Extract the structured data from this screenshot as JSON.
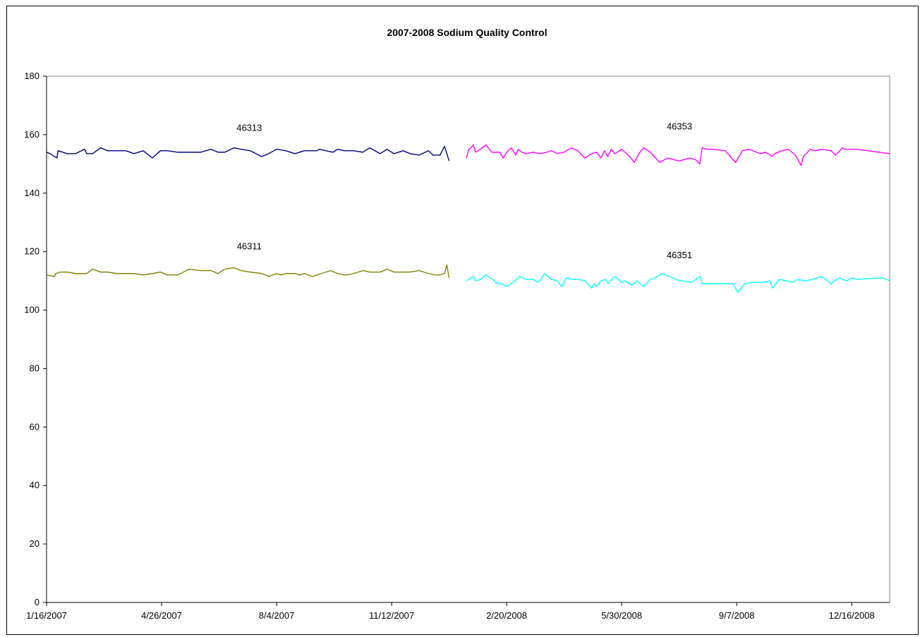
{
  "chart_data": {
    "type": "line",
    "title": "2007-2008 Sodium Quality Control",
    "xlabel": "",
    "ylabel": "",
    "ylim": [
      0,
      180
    ],
    "yticks": [
      0,
      20,
      40,
      60,
      80,
      100,
      120,
      140,
      160,
      180
    ],
    "x_axis": "date",
    "xlim": [
      "2007-01-16",
      "2009-01-18"
    ],
    "xtick_labels": [
      "1/16/2007",
      "4/26/2007",
      "8/4/2007",
      "11/12/2007",
      "2/20/2008",
      "5/30/2008",
      "9/7/2008",
      "12/16/2008"
    ],
    "xtick_dates": [
      "2007-01-16",
      "2007-04-26",
      "2007-08-04",
      "2007-11-12",
      "2008-02-20",
      "2008-05-30",
      "2008-09-07",
      "2008-12-16"
    ],
    "grid": false,
    "legend": "none",
    "series": [
      {
        "name": "46313",
        "color": "#000080",
        "x": [
          "2007-01-16",
          "2007-01-19",
          "2007-01-25",
          "2007-01-26",
          "2007-02-03",
          "2007-02-10",
          "2007-02-18",
          "2007-02-20",
          "2007-02-25",
          "2007-03-04",
          "2007-03-10",
          "2007-03-18",
          "2007-03-26",
          "2007-04-02",
          "2007-04-10",
          "2007-04-18",
          "2007-04-25",
          "2007-05-01",
          "2007-05-10",
          "2007-05-20",
          "2007-05-30",
          "2007-06-08",
          "2007-06-14",
          "2007-06-20",
          "2007-06-28",
          "2007-07-04",
          "2007-07-12",
          "2007-07-22",
          "2007-07-28",
          "2007-08-04",
          "2007-08-12",
          "2007-08-20",
          "2007-08-28",
          "2007-09-04",
          "2007-09-08",
          "2007-09-10",
          "2007-09-16",
          "2007-09-22",
          "2007-09-26",
          "2007-10-02",
          "2007-10-10",
          "2007-10-18",
          "2007-10-24",
          "2007-11-02",
          "2007-11-08",
          "2007-11-14",
          "2007-11-22",
          "2007-11-28",
          "2007-12-06",
          "2007-12-14",
          "2007-12-18",
          "2007-12-24",
          "2007-12-28",
          "2007-12-30",
          "2008-01-01"
        ],
        "values": [
          154,
          153.5,
          152,
          154.5,
          153.5,
          153.5,
          155,
          153.5,
          153.5,
          155.5,
          154.5,
          154.5,
          154.5,
          153.5,
          154.5,
          152,
          154.5,
          154.5,
          154,
          154,
          154,
          155,
          154,
          154,
          155.5,
          155,
          154.5,
          152.5,
          153.5,
          155,
          154.5,
          153.5,
          154.5,
          154.5,
          154.5,
          155,
          154.5,
          154,
          155,
          154.5,
          154.5,
          154,
          155.5,
          153.5,
          155,
          153.5,
          154.5,
          153.5,
          153,
          154.5,
          153,
          153,
          156,
          153.5,
          151
        ]
      },
      {
        "name": "46311",
        "color": "#808000",
        "x": [
          "2007-01-16",
          "2007-01-23",
          "2007-01-24",
          "2007-01-28",
          "2007-02-03",
          "2007-02-10",
          "2007-02-20",
          "2007-02-25",
          "2007-03-04",
          "2007-03-10",
          "2007-03-18",
          "2007-03-26",
          "2007-04-02",
          "2007-04-10",
          "2007-04-18",
          "2007-04-25",
          "2007-05-01",
          "2007-05-05",
          "2007-05-10",
          "2007-05-20",
          "2007-05-30",
          "2007-06-08",
          "2007-06-14",
          "2007-06-20",
          "2007-06-28",
          "2007-07-04",
          "2007-07-12",
          "2007-07-22",
          "2007-07-28",
          "2007-08-04",
          "2007-08-08",
          "2007-08-12",
          "2007-08-20",
          "2007-08-24",
          "2007-08-28",
          "2007-09-04",
          "2007-09-12",
          "2007-09-20",
          "2007-09-26",
          "2007-10-02",
          "2007-10-04",
          "2007-10-10",
          "2007-10-18",
          "2007-10-24",
          "2007-10-28",
          "2007-11-02",
          "2007-11-08",
          "2007-11-14",
          "2007-11-22",
          "2007-11-28",
          "2007-12-06",
          "2007-12-14",
          "2007-12-20",
          "2007-12-24",
          "2007-12-28",
          "2007-12-30",
          "2008-01-01"
        ],
        "values": [
          112,
          111.5,
          112.5,
          113,
          113,
          112.5,
          112.5,
          114,
          113,
          113,
          112.5,
          112.5,
          112.5,
          112,
          112.5,
          113,
          112,
          112,
          112,
          114,
          113.5,
          113.5,
          112.5,
          114,
          114.5,
          113.5,
          113,
          112.5,
          111.5,
          112.5,
          112,
          112.5,
          112.5,
          112,
          112.5,
          111.5,
          112.5,
          113.5,
          112.5,
          112,
          112,
          112.5,
          113.5,
          113,
          113,
          113,
          114,
          113,
          113,
          113,
          113.5,
          112.5,
          112,
          112,
          112.5,
          115.5,
          111
        ]
      },
      {
        "name": "46353",
        "color": "#FF00FF",
        "x": [
          "2008-01-16",
          "2008-01-18",
          "2008-01-20",
          "2008-01-22",
          "2008-01-24",
          "2008-01-28",
          "2008-02-02",
          "2008-02-07",
          "2008-02-10",
          "2008-02-14",
          "2008-02-17",
          "2008-02-20",
          "2008-02-24",
          "2008-02-28",
          "2008-03-01",
          "2008-03-04",
          "2008-03-08",
          "2008-03-14",
          "2008-03-20",
          "2008-03-26",
          "2008-03-30",
          "2008-04-04",
          "2008-04-10",
          "2008-04-16",
          "2008-04-22",
          "2008-04-28",
          "2008-05-04",
          "2008-05-08",
          "2008-05-12",
          "2008-05-15",
          "2008-05-18",
          "2008-05-21",
          "2008-05-24",
          "2008-05-30",
          "2008-06-06",
          "2008-06-10",
          "2008-06-14",
          "2008-06-18",
          "2008-06-24",
          "2008-06-26",
          "2008-07-02",
          "2008-07-09",
          "2008-07-19",
          "2008-07-28",
          "2008-08-02",
          "2008-08-06",
          "2008-08-08",
          "2008-08-12",
          "2008-08-18",
          "2008-08-28",
          "2008-09-06",
          "2008-09-12",
          "2008-09-18",
          "2008-09-24",
          "2008-09-28",
          "2008-10-02",
          "2008-10-08",
          "2008-10-10",
          "2008-10-16",
          "2008-10-22",
          "2008-10-28",
          "2008-11-02",
          "2008-11-04",
          "2008-11-10",
          "2008-11-14",
          "2008-11-20",
          "2008-11-28",
          "2008-12-02",
          "2008-12-08",
          "2008-12-10",
          "2008-12-12",
          "2008-12-16",
          "2008-12-18",
          "2008-12-20",
          "2009-01-18"
        ],
        "values": [
          152,
          155,
          155.5,
          156.5,
          154,
          155,
          156.5,
          154,
          154,
          154,
          152,
          154,
          155.5,
          153,
          155,
          154,
          153.5,
          154,
          153.5,
          154,
          154.5,
          153.5,
          154,
          155.5,
          154.5,
          152,
          153.5,
          154,
          152,
          154.5,
          152.5,
          155,
          153.5,
          155,
          152.5,
          150.5,
          153.5,
          155.5,
          154,
          153,
          150.5,
          152,
          151,
          152,
          151.5,
          150,
          155.5,
          155,
          155,
          154.5,
          150.5,
          154.5,
          155,
          154,
          153.5,
          154,
          152.5,
          153.5,
          154.5,
          155,
          153,
          149.5,
          152.5,
          155,
          154.5,
          155,
          154.5,
          153,
          155.5,
          155,
          155,
          155,
          155,
          155,
          153.5
        ]
      },
      {
        "name": "46351",
        "color": "#00FFFF",
        "x": [
          "2008-01-16",
          "2008-01-18",
          "2008-01-22",
          "2008-01-24",
          "2008-01-28",
          "2008-02-02",
          "2008-02-08",
          "2008-02-12",
          "2008-02-16",
          "2008-02-20",
          "2008-02-26",
          "2008-03-02",
          "2008-03-08",
          "2008-03-14",
          "2008-03-18",
          "2008-03-20",
          "2008-03-24",
          "2008-03-30",
          "2008-04-04",
          "2008-04-08",
          "2008-04-12",
          "2008-04-16",
          "2008-04-22",
          "2008-04-28",
          "2008-05-04",
          "2008-05-06",
          "2008-05-08",
          "2008-05-12",
          "2008-05-16",
          "2008-05-18",
          "2008-05-20",
          "2008-05-24",
          "2008-05-30",
          "2008-06-02",
          "2008-06-08",
          "2008-06-12",
          "2008-06-18",
          "2008-06-24",
          "2008-06-28",
          "2008-07-04",
          "2008-07-10",
          "2008-07-20",
          "2008-07-30",
          "2008-08-06",
          "2008-08-08",
          "2008-08-20",
          "2008-08-30",
          "2008-09-04",
          "2008-09-08",
          "2008-09-14",
          "2008-09-22",
          "2008-09-30",
          "2008-10-06",
          "2008-10-08",
          "2008-10-14",
          "2008-10-20",
          "2008-10-26",
          "2008-10-30",
          "2008-11-06",
          "2008-11-12",
          "2008-11-20",
          "2008-11-28",
          "2008-12-01",
          "2008-12-06",
          "2008-12-08",
          "2008-12-12",
          "2008-12-16",
          "2008-12-20",
          "2009-01-12",
          "2009-01-18"
        ],
        "values": [
          110,
          110.5,
          111.5,
          110,
          110.5,
          112,
          110.5,
          109,
          109,
          108,
          109.5,
          111.5,
          110.5,
          110.5,
          109.5,
          110,
          112.5,
          110.5,
          110,
          108,
          111,
          110.5,
          110.5,
          110,
          107.5,
          109,
          108,
          110,
          110.5,
          109,
          110,
          111.5,
          109.5,
          110,
          108.5,
          110,
          108,
          110.5,
          111,
          112.5,
          111.5,
          110,
          109.5,
          111.5,
          109,
          109,
          109,
          109,
          106,
          109,
          109.5,
          109.5,
          110,
          107.5,
          110.5,
          110,
          109.5,
          110.5,
          110,
          110.5,
          111.5,
          109,
          110,
          111,
          110.5,
          110,
          111,
          110.5,
          111,
          110
        ]
      }
    ]
  }
}
